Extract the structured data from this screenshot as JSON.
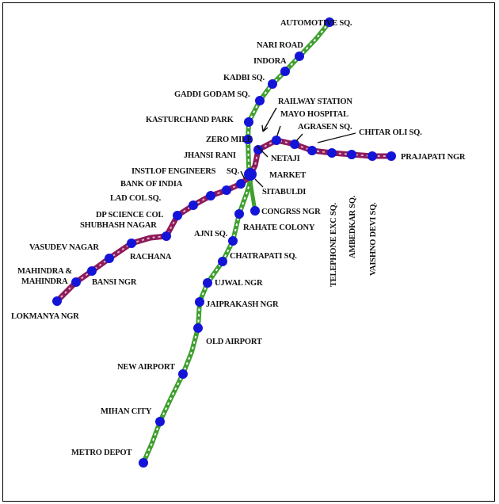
{
  "colors": {
    "green_line": "#3f9f2f",
    "green_line_dash": "#ffffff",
    "purple_line": "#8e1a5a",
    "purple_line_dash": "#d8b4c8",
    "station": "#1414d8",
    "text": "#111111"
  },
  "lines": {
    "north_south": {
      "name": "",
      "color_key": "green_line"
    },
    "east_west": {
      "name": "",
      "color_key": "purple_line"
    }
  },
  "stations": {
    "automotive_sq": "AUTOMOTIVE SQ.",
    "nari_road": "NARI ROAD",
    "indora": "INDORA",
    "kadbi_sq": "KADBI SQ.",
    "gaddi_godam_sq": "GADDI GODAM SQ.",
    "kasturchand_park": "KASTURCHAND PARK",
    "zero_mile": "ZERO MILE",
    "sitabuldi": "SITABULDI",
    "congress_ngr": "CONGRSS NGR",
    "rahate_colony": "RAHATE COLONY",
    "ajni_sq": "AJNI SQ.",
    "chatrapati_sq": "CHATRAPATI SQ.",
    "ujwal_ngr": "UJWAL NGR",
    "jaiprakash_ngr": "JAIPRAKASH NGR",
    "old_airport": "OLD AIRPORT",
    "new_airport": "NEW AIRPORT",
    "mihan_city": "MIHAN CITY",
    "metro_depot": "METRO DEPOT",
    "railway_station": "RAILWAY STATION",
    "mayo_hospital": "MAYO HOSPITAL",
    "agrasen_sq": "AGRASEN SQ.",
    "chitar_oli_sq": "CHITAR OLI SQ.",
    "telephone_exc_sq": "TELEPHONE EXC SQ.",
    "ambedkar_sq": "AMBEDKAR SQ.",
    "vaishno_devi_sq": "VAISHNO DEVI SQ.",
    "prajapati_ngr": "PRAJAPATI NGR",
    "netaji_market_1": "NETAJI",
    "netaji_market_2": "MARKET",
    "jhansi_rani_sq_1": "JHANSI RANI",
    "jhansi_rani_sq_2": "SQ.",
    "inst_engineers": "INSTI.OF ENGINEERS",
    "bank_of_india": "BANK OF INDIA",
    "lad_col_sq": "LAD COL SQ.",
    "dp_science_col": "DP SCIENCE COL",
    "shubhash_nagar": "SHUBHASH NAGAR",
    "rachana": "RACHANA",
    "vasudev_nagar": "VASUDEV NAGAR",
    "mahindra_1": "MAHINDRA &",
    "mahindra_2": "MAHINDRA",
    "bansi_ngr": "BANSI NGR",
    "lokmanya_ngr": "LOKMANYA NGR"
  }
}
